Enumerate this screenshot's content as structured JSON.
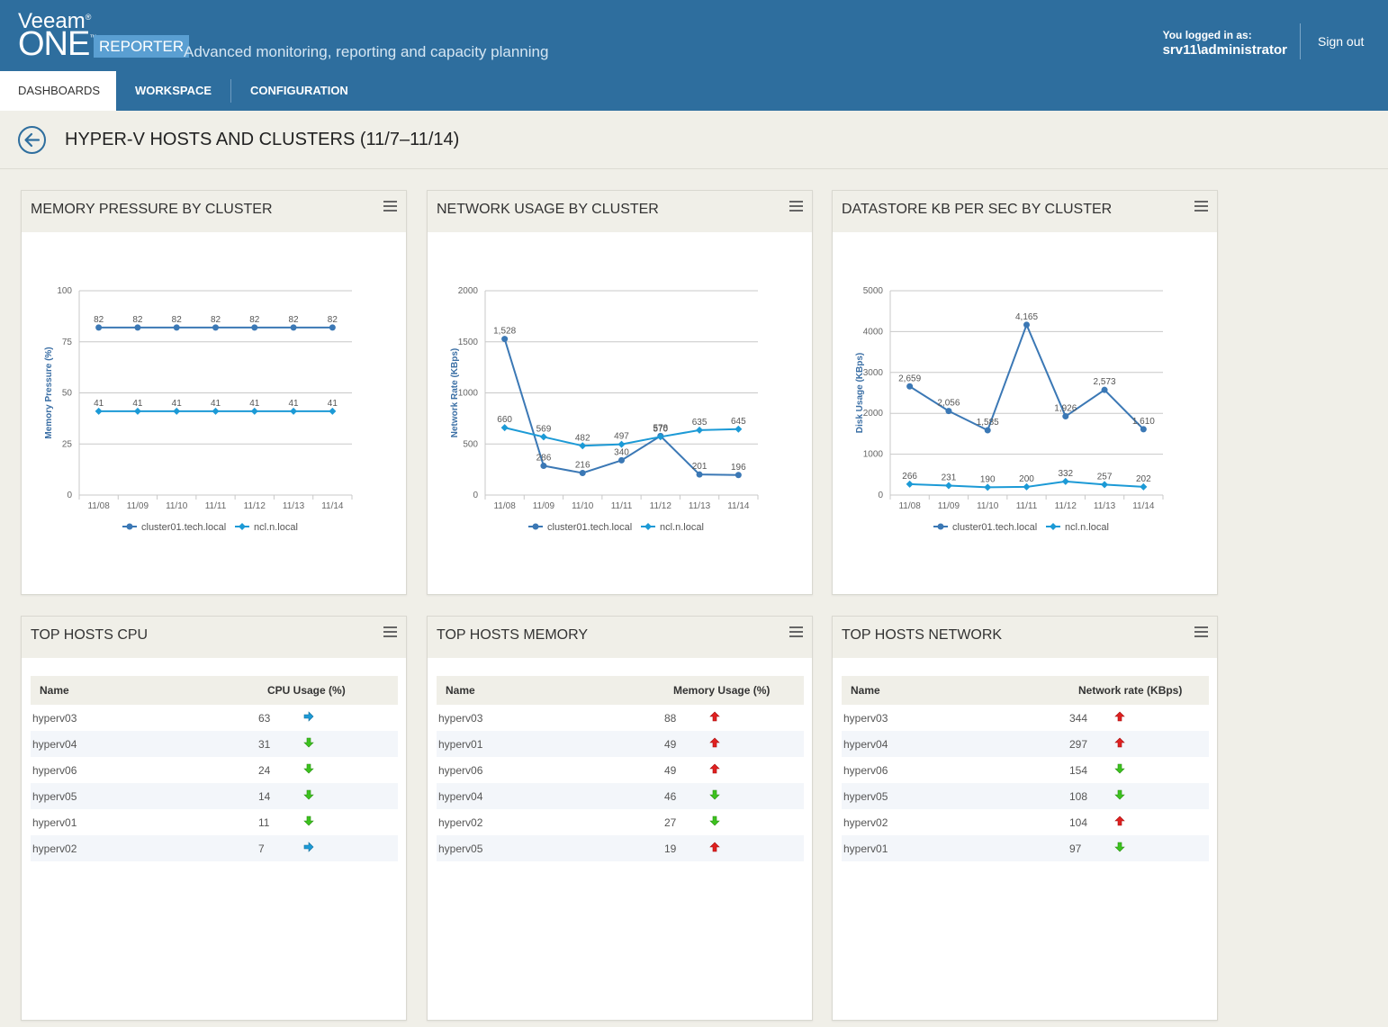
{
  "header": {
    "brand_top": "Veeam",
    "brand_main": "ONE",
    "brand_badge": "REPORTER",
    "tagline": "Advanced monitoring, reporting and capacity planning",
    "login_label": "You logged in as:",
    "login_user": "srv11\\administrator",
    "signout_label": "Sign out"
  },
  "tabs": [
    {
      "label": "DASHBOARDS",
      "active": true
    },
    {
      "label": "WORKSPACE",
      "active": false
    },
    {
      "label": "CONFIGURATION",
      "active": false
    }
  ],
  "page": {
    "title": "HYPER-V HOSTS AND CLUSTERS (11/7–11/14)"
  },
  "colors": {
    "series_dark": "#3b78b5",
    "series_light": "#1c9ad6",
    "trend_up": "#e02020",
    "trend_down": "#3cc21e",
    "trend_flat": "#1c9ad6"
  },
  "panels": {
    "memory_pressure": {
      "title": "MEMORY PRESSURE BY CLUSTER"
    },
    "network_usage": {
      "title": "NETWORK USAGE BY CLUSTER"
    },
    "datastore": {
      "title": "DATASTORE KB PER SEC BY CLUSTER"
    },
    "top_cpu": {
      "title": "TOP HOSTS CPU"
    },
    "top_memory": {
      "title": "TOP HOSTS MEMORY"
    },
    "top_network": {
      "title": "TOP HOSTS NETWORK"
    }
  },
  "chart_data": [
    {
      "id": "memory_pressure",
      "type": "line",
      "categories": [
        "11/08",
        "11/09",
        "11/10",
        "11/11",
        "11/12",
        "11/13",
        "11/14"
      ],
      "ylabel": "Memory Pressure (%)",
      "ylim": [
        0,
        100
      ],
      "yticks": [
        0,
        25,
        50,
        75,
        100
      ],
      "legend_position": "bottom",
      "series": [
        {
          "name": "cluster01.tech.local",
          "values": [
            82,
            82,
            82,
            82,
            82,
            82,
            82
          ],
          "labels": [
            "82",
            "82",
            "82",
            "82",
            "82",
            "82",
            "82"
          ]
        },
        {
          "name": "ncl.n.local",
          "values": [
            41,
            41,
            41,
            41,
            41,
            41,
            41
          ],
          "labels": [
            "41",
            "41",
            "41",
            "41",
            "41",
            "41",
            "41"
          ]
        }
      ]
    },
    {
      "id": "network_usage",
      "type": "line",
      "categories": [
        "11/08",
        "11/09",
        "11/10",
        "11/11",
        "11/12",
        "11/13",
        "11/14"
      ],
      "ylabel": "Network Rate (KBps)",
      "ylim": [
        0,
        2000
      ],
      "yticks": [
        0,
        500,
        1000,
        1500,
        2000
      ],
      "legend_position": "bottom",
      "series": [
        {
          "name": "cluster01.tech.local",
          "values": [
            1528,
            286,
            216,
            340,
            578,
            201,
            196
          ],
          "labels": [
            "1,528",
            "286",
            "216",
            "340",
            "578",
            "201",
            "196"
          ]
        },
        {
          "name": "ncl.n.local",
          "values": [
            660,
            569,
            482,
            497,
            570,
            635,
            645
          ],
          "labels": [
            "660",
            "569",
            "482",
            "497",
            "570",
            "635",
            "645"
          ]
        }
      ]
    },
    {
      "id": "datastore",
      "type": "line",
      "categories": [
        "11/08",
        "11/09",
        "11/10",
        "11/11",
        "11/12",
        "11/13",
        "11/14"
      ],
      "ylabel": "Disk Usage (KBps)",
      "ylim": [
        0,
        5000
      ],
      "yticks": [
        0,
        1000,
        2000,
        3000,
        4000,
        5000
      ],
      "legend_position": "bottom",
      "series": [
        {
          "name": "cluster01.tech.local",
          "values": [
            2659,
            2056,
            1585,
            4165,
            1926,
            2573,
            1610
          ],
          "labels": [
            "2,659",
            "2,056",
            "1,585",
            "4,165",
            "1,926",
            "2,573",
            "1,610"
          ]
        },
        {
          "name": "ncl.n.local",
          "values": [
            266,
            231,
            190,
            200,
            332,
            257,
            202
          ],
          "labels": [
            "266",
            "231",
            "190",
            "200",
            "332",
            "257",
            "202"
          ]
        }
      ]
    }
  ],
  "tables": {
    "top_cpu": {
      "columns": [
        "Name",
        "CPU Usage (%)"
      ],
      "rows": [
        {
          "name": "hyperv03",
          "value": "63",
          "trend": "flat"
        },
        {
          "name": "hyperv04",
          "value": "31",
          "trend": "down"
        },
        {
          "name": "hyperv06",
          "value": "24",
          "trend": "down"
        },
        {
          "name": "hyperv05",
          "value": "14",
          "trend": "down"
        },
        {
          "name": "hyperv01",
          "value": "11",
          "trend": "down"
        },
        {
          "name": "hyperv02",
          "value": "7",
          "trend": "flat"
        }
      ]
    },
    "top_memory": {
      "columns": [
        "Name",
        "Memory Usage (%)"
      ],
      "rows": [
        {
          "name": "hyperv03",
          "value": "88",
          "trend": "up"
        },
        {
          "name": "hyperv01",
          "value": "49",
          "trend": "up"
        },
        {
          "name": "hyperv06",
          "value": "49",
          "trend": "up"
        },
        {
          "name": "hyperv04",
          "value": "46",
          "trend": "down"
        },
        {
          "name": "hyperv02",
          "value": "27",
          "trend": "down"
        },
        {
          "name": "hyperv05",
          "value": "19",
          "trend": "up"
        }
      ]
    },
    "top_network": {
      "columns": [
        "Name",
        "Network rate (KBps)"
      ],
      "rows": [
        {
          "name": "hyperv03",
          "value": "344",
          "trend": "up"
        },
        {
          "name": "hyperv04",
          "value": "297",
          "trend": "up"
        },
        {
          "name": "hyperv06",
          "value": "154",
          "trend": "down"
        },
        {
          "name": "hyperv05",
          "value": "108",
          "trend": "down"
        },
        {
          "name": "hyperv02",
          "value": "104",
          "trend": "up"
        },
        {
          "name": "hyperv01",
          "value": "97",
          "trend": "down"
        }
      ]
    }
  }
}
